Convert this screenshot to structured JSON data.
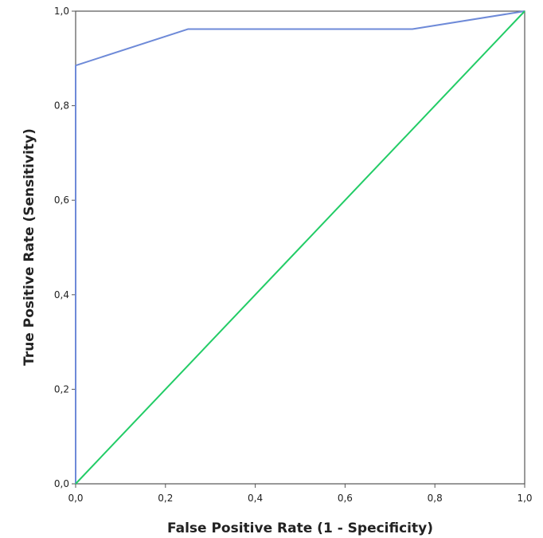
{
  "chart_data": {
    "type": "line",
    "title": "",
    "xlabel": "False Positive Rate (1 - Specificity)",
    "ylabel": "True Positive Rate (Sensitivity)",
    "xlim": [
      0,
      1
    ],
    "ylim": [
      0,
      1
    ],
    "x_ticks": [
      "0,0",
      "0,2",
      "0,4",
      "0,6",
      "0,8",
      "1,0"
    ],
    "y_ticks": [
      "0,0",
      "0,2",
      "0,4",
      "0,6",
      "0,8",
      "1,0"
    ],
    "grid": false,
    "series": [
      {
        "color": "#6e8ad8",
        "x": [
          0.0,
          0.0,
          0.25,
          0.75,
          1.0
        ],
        "y": [
          0.0,
          0.885,
          0.962,
          0.962,
          1.0
        ]
      },
      {
        "color": "#22cc66",
        "x": [
          0.0,
          1.0
        ],
        "y": [
          0.0,
          1.0
        ]
      }
    ]
  }
}
